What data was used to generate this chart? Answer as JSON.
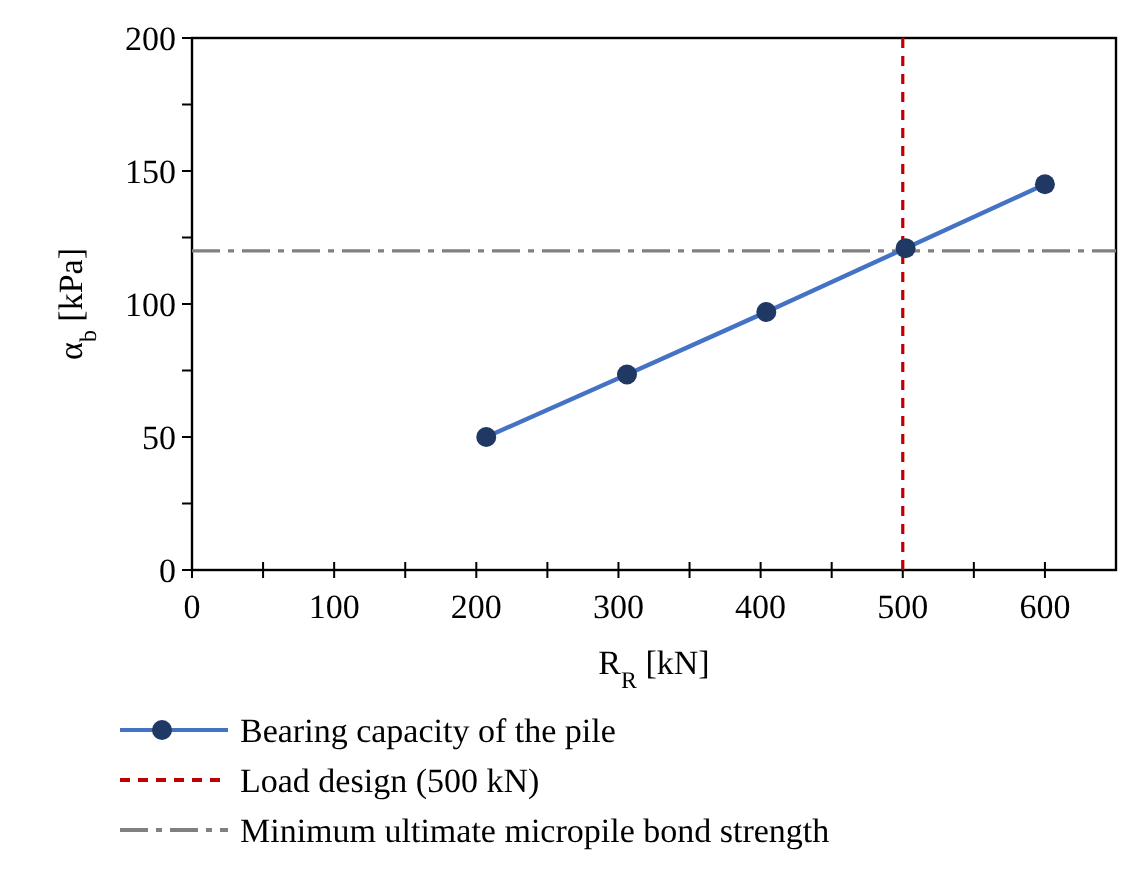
{
  "chart_data": {
    "type": "line",
    "xlabel": "R$_{R}$ [kN]",
    "ylabel": "α$_{b}$  [kPa]",
    "x": [
      207,
      306,
      404,
      502,
      600
    ],
    "series": [
      {
        "name": "Bearing capacity of the pile",
        "color": "#4472c4",
        "values": [
          50,
          73.5,
          97,
          121,
          145
        ]
      }
    ],
    "marker": "circle",
    "line_style": "solid",
    "legend": "bottom",
    "grid": false,
    "xlim": [
      0,
      650
    ],
    "xticks": [
      0,
      {
        "value": 50,
        "label": null
      },
      100,
      {
        "value": 150,
        "label": null
      },
      200,
      {
        "value": 250,
        "label": null
      },
      300,
      {
        "value": 350,
        "label": null
      },
      400,
      {
        "value": 450,
        "label": null
      },
      500,
      {
        "value": 550,
        "label": null
      },
      600
    ],
    "ylim": [
      0,
      200
    ],
    "yticks": [
      0,
      {
        "value": 25,
        "label": null
      },
      50,
      {
        "value": 75,
        "label": null
      },
      100,
      {
        "value": 125,
        "label": null
      },
      150,
      {
        "value": 175,
        "label": null
      },
      200
    ],
    "ref_lines": [
      {
        "axis": "x",
        "value": 500,
        "label": "Load design (500 kN)",
        "color": "#c00000",
        "line_style": "dashed"
      },
      {
        "axis": "y",
        "value": 120,
        "label": "Minimum  ultimate micropile bond strength",
        "color": "#808080",
        "line_style": "dashdot"
      }
    ]
  }
}
